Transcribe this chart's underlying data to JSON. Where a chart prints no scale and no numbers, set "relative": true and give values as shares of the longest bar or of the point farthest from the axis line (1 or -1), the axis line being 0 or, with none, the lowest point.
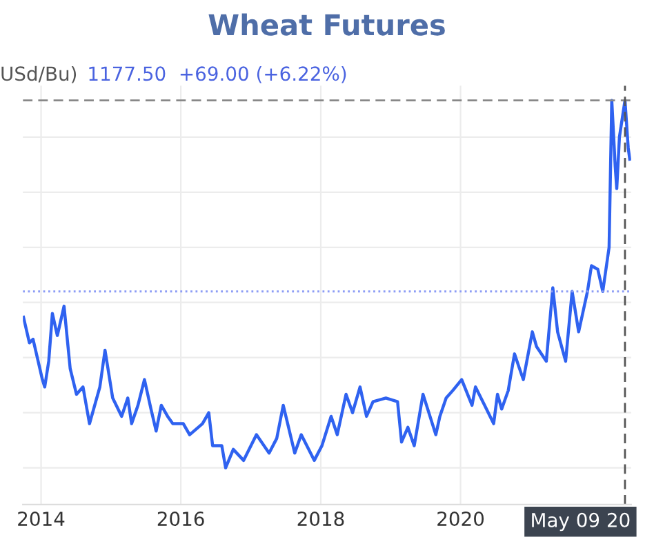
{
  "chart_data": {
    "type": "line",
    "title": "Wheat Futures",
    "relative": true,
    "x": [
      "2013-10-01",
      "2013-11-01",
      "2013-11-20",
      "2014-01-08",
      "2014-01-20",
      "2014-02-10",
      "2014-03-01",
      "2014-03-27",
      "2014-05-01",
      "2014-06-02",
      "2014-07-05",
      "2014-08-08",
      "2014-09-11",
      "2014-11-04",
      "2014-12-01",
      "2015-01-10",
      "2015-02-26",
      "2015-03-30",
      "2015-04-19",
      "2015-05-22",
      "2015-06-25",
      "2015-07-29",
      "2015-08-25",
      "2015-09-21",
      "2015-10-24",
      "2015-11-20",
      "2016-01-14",
      "2016-02-16",
      "2016-04-23",
      "2016-05-26",
      "2016-06-15",
      "2016-08-02",
      "2016-08-22",
      "2016-10-01",
      "2016-11-24",
      "2017-01-30",
      "2017-04-06",
      "2017-05-16",
      "2017-06-19",
      "2017-08-18",
      "2017-09-21",
      "2017-11-28",
      "2018-01-07",
      "2018-02-24",
      "2018-03-28",
      "2018-05-13",
      "2018-06-16",
      "2018-07-25",
      "2018-08-28",
      "2018-10-01",
      "2018-12-07",
      "2019-02-06",
      "2019-02-27",
      "2019-04-01",
      "2019-05-04",
      "2019-06-19",
      "2019-08-25",
      "2019-09-15",
      "2019-10-18",
      "2019-11-21",
      "2020-01-07",
      "2020-03-01",
      "2020-03-19",
      "2020-05-06",
      "2020-06-22",
      "2020-07-12",
      "2020-08-03",
      "2020-09-06",
      "2020-09-19",
      "2020-10-09",
      "2020-11-04",
      "2020-11-24",
      "2021-01-10",
      "2021-02-01",
      "2021-03-24",
      "2021-04-27",
      "2021-05-22",
      "2021-07-03",
      "2021-08-06",
      "2021-09-09",
      "2021-10-25",
      "2021-11-15",
      "2021-12-18",
      "2022-01-13",
      "2022-02-15",
      "2022-03-01",
      "2022-03-19",
      "2022-03-27",
      "2022-04-10",
      "2022-05-09",
      "2022-05-26",
      "2022-06-03"
    ],
    "series": [
      {
        "color": "#2f62f0",
        "values": [
          0.41,
          0.34,
          0.35,
          0.24,
          0.22,
          0.29,
          0.42,
          0.36,
          0.44,
          0.27,
          0.2,
          0.22,
          0.12,
          0.22,
          0.32,
          0.19,
          0.14,
          0.19,
          0.12,
          0.17,
          0.24,
          0.16,
          0.1,
          0.17,
          0.14,
          0.12,
          0.12,
          0.09,
          0.12,
          0.15,
          0.06,
          0.06,
          0,
          0.05,
          0.02,
          0.09,
          0.04,
          0.08,
          0.17,
          0.04,
          0.09,
          0.02,
          0.06,
          0.14,
          0.09,
          0.2,
          0.15,
          0.22,
          0.14,
          0.18,
          0.19,
          0.18,
          0.07,
          0.11,
          0.06,
          0.2,
          0.09,
          0.14,
          0.19,
          0.21,
          0.24,
          0.17,
          0.22,
          0.17,
          0.12,
          0.2,
          0.16,
          0.21,
          0.25,
          0.31,
          0.27,
          0.24,
          0.37,
          0.33,
          0.29,
          0.49,
          0.37,
          0.29,
          0.48,
          0.37,
          0.48,
          0.55,
          0.54,
          0.48,
          0.6,
          1.0,
          0.82,
          0.76,
          0.9,
          1.0,
          0.87,
          0.84
        ]
      }
    ],
    "xlim": [
      "2013-09-28",
      "2022-06-10"
    ],
    "xticks": [
      {
        "value": "2014-01-01",
        "label": "2014"
      },
      {
        "value": "2016-01-01",
        "label": "2016"
      },
      {
        "value": "2018-01-01",
        "label": "2018"
      },
      {
        "value": "2020-01-01",
        "label": "2020"
      }
    ],
    "ref_lines": [
      {
        "axis": "y",
        "value": 1.0,
        "color": "#888888",
        "line_style": "dashed"
      },
      {
        "axis": "y",
        "value": 0.48,
        "color": "#8c9cf5",
        "line_style": "dotted"
      },
      {
        "axis": "x",
        "value": "2022-05-09",
        "label": "May 09 20",
        "color": "#555555",
        "line_style": "dashed"
      }
    ],
    "annotations": [
      "USd/Bu)",
      "1177.50  +69.00 (+6.22%)"
    ],
    "grid": true
  }
}
